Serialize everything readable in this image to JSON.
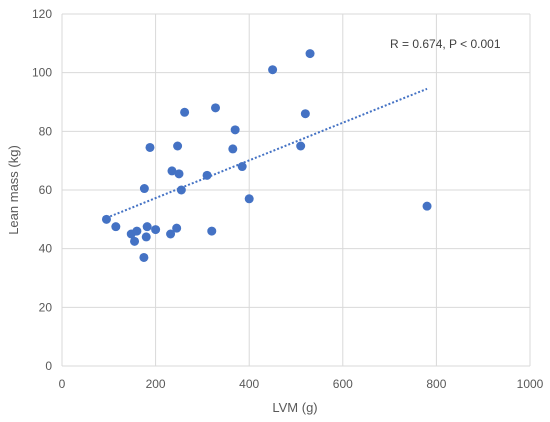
{
  "chart_data": {
    "type": "scatter",
    "xlabel": "LVM  (g)",
    "ylabel": "Lean mass (kg)",
    "xlim": [
      0,
      1000
    ],
    "ylim": [
      0,
      120
    ],
    "x_ticks": [
      0,
      200,
      400,
      600,
      800,
      1000
    ],
    "y_ticks": [
      0,
      20,
      40,
      60,
      80,
      100,
      120
    ],
    "grid": true,
    "annotation": "R = 0.674, P < 0.001",
    "trendline": {
      "style": "dotted",
      "x_start": 95,
      "y_start": 50.5,
      "x_end": 780,
      "y_end": 94.5
    },
    "series": [
      {
        "x": [
          95,
          115,
          148,
          155,
          160,
          175,
          176,
          180,
          182,
          188,
          200,
          232,
          235,
          245,
          247,
          250,
          255,
          262,
          310,
          320,
          328,
          365,
          370,
          385,
          400,
          450,
          510,
          520,
          530,
          780
        ],
        "y": [
          50,
          47.5,
          45,
          42.5,
          46,
          37,
          60.5,
          44,
          47.5,
          74.5,
          46.5,
          45,
          66.5,
          47,
          75,
          65.5,
          60,
          86.5,
          65,
          46,
          88,
          74,
          80.5,
          68,
          57,
          101,
          75,
          86,
          106.5,
          54.5
        ]
      }
    ],
    "colors": {
      "marker": "#4472C4",
      "trendline": "#4472C4",
      "grid": "#d9d9d9",
      "axis_text": "#595959"
    }
  }
}
